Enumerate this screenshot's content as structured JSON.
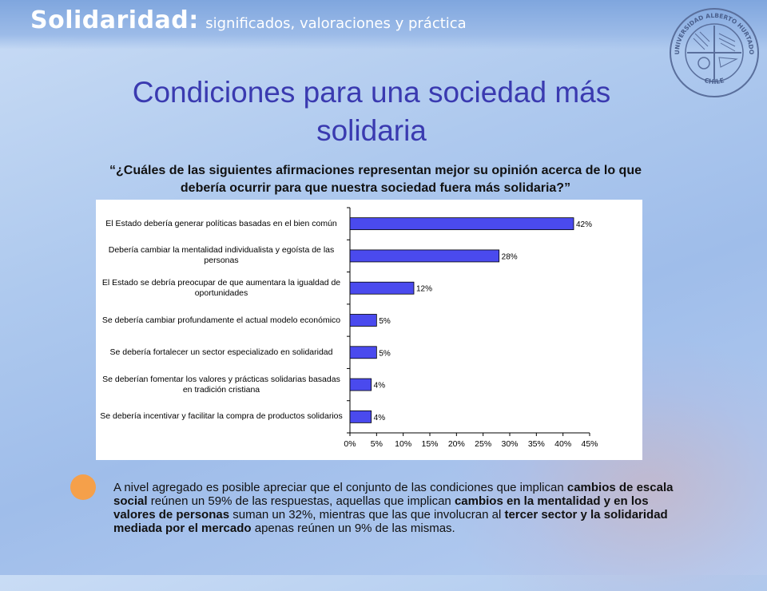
{
  "header": {
    "brand_main": "Solidaridad:",
    "brand_sub": "significados, valoraciones y práctica"
  },
  "seal": {
    "top_text": "UNIVERSIDAD ALBERTO HURTADO",
    "bottom_text": "CHILE"
  },
  "slide": {
    "title": "Condiciones para una sociedad más solidaria",
    "question": "“¿Cuáles de las siguientes afirmaciones representan mejor su opinión acerca de lo que debería ocurrir para que nuestra sociedad fuera más solidaria?”"
  },
  "chart_data": {
    "type": "bar",
    "orientation": "horizontal",
    "title": "",
    "xlabel": "",
    "ylabel": "",
    "categories": [
      "El Estado debería generar políticas basadas en el bien común",
      "Debería cambiar la mentalidad individualista y egoísta de las personas",
      "El Estado se debría preocupar de que aumentara la igualdad de oportunidades",
      "Se debería cambiar profundamente el actual modelo económico",
      "Se debería fortalecer un sector especializado en solidaridad",
      "Se deberían fomentar los valores y prácticas solidarias basadas en tradición cristiana",
      "Se debería incentivar y facilitar la compra de productos solidarios"
    ],
    "values": [
      42,
      28,
      12,
      5,
      5,
      4,
      4
    ],
    "data_labels": [
      "42%",
      "28%",
      "12%",
      "5%",
      "5%",
      "4%",
      "4%"
    ],
    "xlim": [
      0,
      45
    ],
    "x_ticks": [
      "0%",
      "5%",
      "10%",
      "15%",
      "20%",
      "25%",
      "30%",
      "35%",
      "40%",
      "45%"
    ],
    "bar_color": "#4a4aee",
    "grid": false,
    "legend": "none"
  },
  "summary": {
    "p1": "A nivel agregado es posible apreciar que el conjunto de las condiciones que implican ",
    "b1": "cambios de escala social",
    "p2": " reúnen un 59% de las respuestas, aquellas que implican ",
    "b2": "cambios en la mentalidad y en los valores de personas",
    "p3": " suman un 32%, mientras que las que involucran al ",
    "b3": "tercer sector y la solidaridad mediada por el mercado",
    "p4": " apenas reúnen un 9% de las mismas."
  },
  "colors": {
    "title": "#3a3ab0",
    "bullet": "#f5a04a",
    "header_bar": "#7fa6de"
  }
}
